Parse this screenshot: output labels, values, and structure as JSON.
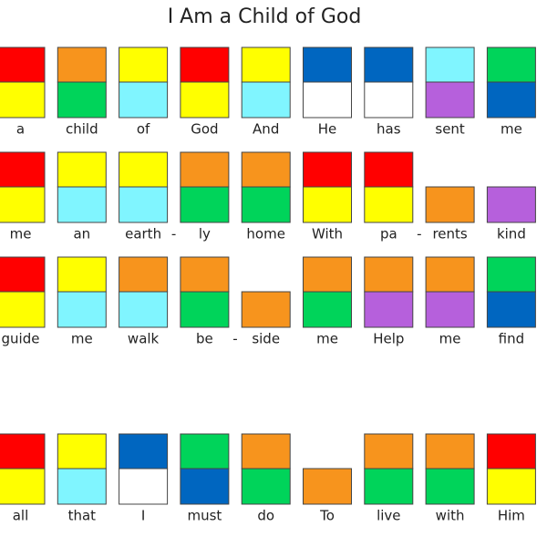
{
  "header": {
    "title": "I Am a Child of God"
  },
  "rows": [
    [
      {
        "label": "a",
        "top": "#ff0000",
        "bottom": "#ffff00"
      },
      {
        "label": "child",
        "top": "#f7941d",
        "bottom": "#00d45a"
      },
      {
        "label": "of",
        "top": "#ffff00",
        "bottom": "#80f5ff"
      },
      {
        "label": "God",
        "top": "#ff0000",
        "bottom": "#ffff00"
      },
      {
        "label": "And",
        "top": "#ffff00",
        "bottom": "#80f5ff"
      },
      {
        "label": "He",
        "top": "#0066c0",
        "bottom": "#ffffff"
      },
      {
        "label": "has",
        "top": "#0066c0",
        "bottom": "#ffffff"
      },
      {
        "label": "sent",
        "top": "#80f5ff",
        "bottom": "#b660dc"
      },
      {
        "label": "me",
        "top": "#00d45a",
        "bottom": "#0066c0"
      }
    ],
    [
      {
        "label": "me",
        "top": "#ff0000",
        "bottom": "#ffff00"
      },
      {
        "label": "an",
        "top": "#ffff00",
        "bottom": "#80f5ff"
      },
      {
        "label": "earth",
        "top": "#ffff00",
        "bottom": "#80f5ff",
        "hyphen": "-"
      },
      {
        "label": "ly",
        "top": "#f7941d",
        "bottom": "#00d45a"
      },
      {
        "label": "home",
        "top": "#f7941d",
        "bottom": "#00d45a"
      },
      {
        "label": "With",
        "top": "#ff0000",
        "bottom": "#ffff00"
      },
      {
        "label": "pa",
        "top": "#ff0000",
        "bottom": "#ffff00",
        "hyphen": "-"
      },
      {
        "label": "rents",
        "top": null,
        "bottom": "#f7941d"
      },
      {
        "label": "kind",
        "top": null,
        "bottom": "#b660dc"
      }
    ],
    [
      {
        "label": "guide",
        "top": "#ff0000",
        "bottom": "#ffff00"
      },
      {
        "label": "me",
        "top": "#ffff00",
        "bottom": "#80f5ff"
      },
      {
        "label": "walk",
        "top": "#f7941d",
        "bottom": "#80f5ff"
      },
      {
        "label": "be",
        "top": "#f7941d",
        "bottom": "#00d45a",
        "hyphen": "-"
      },
      {
        "label": "side",
        "top": null,
        "bottom": "#f7941d"
      },
      {
        "label": "me",
        "top": "#f7941d",
        "bottom": "#00d45a"
      },
      {
        "label": "Help",
        "top": "#f7941d",
        "bottom": "#b660dc"
      },
      {
        "label": "me",
        "top": "#f7941d",
        "bottom": "#b660dc"
      },
      {
        "label": "find",
        "top": "#00d45a",
        "bottom": "#0066c0"
      }
    ],
    [
      {
        "label": "all",
        "top": "#ff0000",
        "bottom": "#ffff00"
      },
      {
        "label": "that",
        "top": "#ffff00",
        "bottom": "#80f5ff"
      },
      {
        "label": "I",
        "top": "#0066c0",
        "bottom": "#ffffff"
      },
      {
        "label": "must",
        "top": "#00d45a",
        "bottom": "#0066c0"
      },
      {
        "label": "do",
        "top": "#f7941d",
        "bottom": "#00d45a"
      },
      {
        "label": "To",
        "top": null,
        "bottom": "#f7941d"
      },
      {
        "label": "live",
        "top": "#f7941d",
        "bottom": "#00d45a"
      },
      {
        "label": "with",
        "top": "#f7941d",
        "bottom": "#00d45a"
      },
      {
        "label": "Him",
        "top": "#ff0000",
        "bottom": "#ffff00"
      }
    ]
  ]
}
